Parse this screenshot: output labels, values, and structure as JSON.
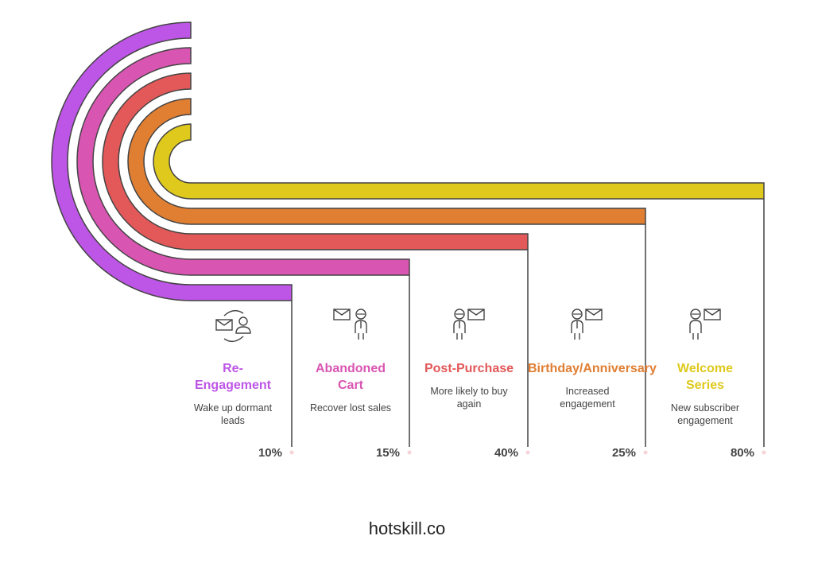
{
  "segments": [
    {
      "title": "Re-\nEngagement",
      "description": "Wake up dormant\nleads",
      "percent": "10%",
      "color": "#bd55e6",
      "icon": "email-user-cycle-icon"
    },
    {
      "title": "Abandoned\nCart",
      "description": "Recover lost sales",
      "percent": "15%",
      "color": "#d955b2",
      "icon": "email-person-icon"
    },
    {
      "title": "Post-Purchase",
      "description": "More likely to buy\nagain",
      "percent": "40%",
      "color": "#e35858",
      "icon": "person-email-icon"
    },
    {
      "title": "Birthday/Anniversary",
      "description": "Increased\nengagement",
      "percent": "25%",
      "color": "#e07e32",
      "icon": "person-email-icon"
    },
    {
      "title": "Welcome\nSeries",
      "description": "New subscriber\nengagement",
      "percent": "80%",
      "color": "#dfc91c",
      "icon": "person-email-icon"
    }
  ],
  "footer": {
    "text": "hotskill.co"
  }
}
